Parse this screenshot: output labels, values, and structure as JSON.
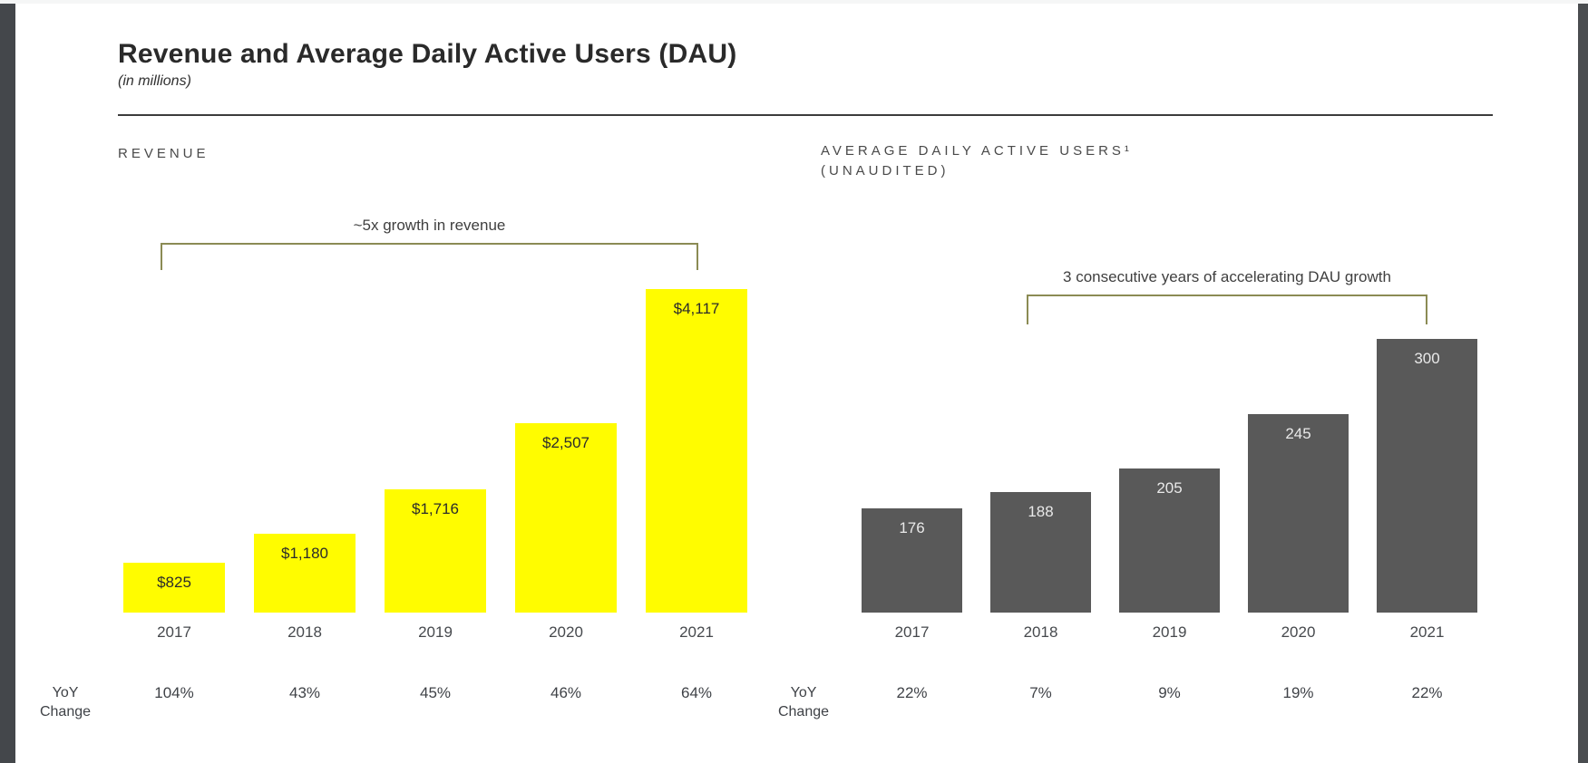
{
  "header": {
    "title": "Revenue and Average Daily Active Users (DAU)",
    "subtitle": "(in millions)"
  },
  "colors": {
    "brand_yellow": "#FFFC00",
    "dau_gray": "#595959",
    "bracket_olive": "#8B8B54",
    "title_text": "#2A2A2A"
  },
  "chart_data": [
    {
      "id": "revenue",
      "type": "bar",
      "title": "REVENUE",
      "annotation": "~5x growth in revenue",
      "categories": [
        "2017",
        "2018",
        "2019",
        "2020",
        "2021"
      ],
      "values": [
        825,
        1180,
        1716,
        2507,
        4117
      ],
      "value_labels": [
        "$825",
        "$1,180",
        "$1,716",
        "$2,507",
        "$4,117"
      ],
      "yoy_label_lines": [
        "YoY",
        "Change"
      ],
      "yoy_change": [
        "104%",
        "43%",
        "45%",
        "46%",
        "64%"
      ],
      "ylim": [
        230,
        4117
      ],
      "grid": false,
      "bar_color": "#FFFC00",
      "value_label_color": "#2b2b2b"
    },
    {
      "id": "dau",
      "type": "bar",
      "title_lines": [
        "AVERAGE DAILY ACTIVE USERS¹",
        "(UNAUDITED)"
      ],
      "annotation": "3 consecutive years of accelerating DAU growth",
      "categories": [
        "2017",
        "2018",
        "2019",
        "2020",
        "2021"
      ],
      "values": [
        176,
        188,
        205,
        245,
        300
      ],
      "value_labels": [
        "176",
        "188",
        "205",
        "245",
        "300"
      ],
      "yoy_label_lines": [
        "YoY",
        "Change"
      ],
      "yoy_change": [
        "22%",
        "7%",
        "9%",
        "19%",
        "22%"
      ],
      "ylim": [
        100,
        300
      ],
      "grid": false,
      "bar_color": "#595959",
      "value_label_color": "#e9e9e9"
    }
  ]
}
